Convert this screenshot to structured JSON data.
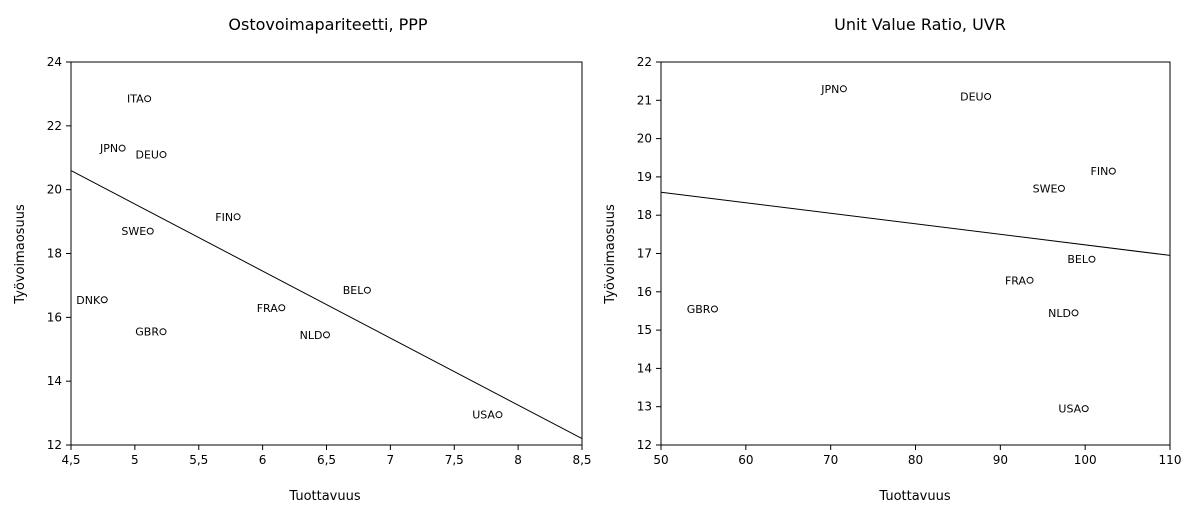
{
  "chart_data": [
    {
      "type": "scatter",
      "title": "Ostovoimapariteetti, PPP",
      "xlabel": "Tuottavuus",
      "ylabel": "Työvoimaosuus",
      "xlim": [
        4.5,
        8.5
      ],
      "ylim": [
        12,
        24
      ],
      "x_ticks": [
        4.5,
        5,
        5.5,
        6,
        6.5,
        7,
        7.5,
        8,
        8.5
      ],
      "x_tick_labels": [
        "4,5",
        "5",
        "5,5",
        "6",
        "6,5",
        "7",
        "7,5",
        "8",
        "8,5"
      ],
      "y_ticks": [
        12,
        14,
        16,
        18,
        20,
        22,
        24
      ],
      "y_tick_labels": [
        "12",
        "14",
        "16",
        "18",
        "20",
        "22",
        "24"
      ],
      "points": [
        {
          "label": "ITA",
          "x": 5.1,
          "y": 22.85
        },
        {
          "label": "JPN",
          "x": 4.9,
          "y": 21.3
        },
        {
          "label": "DEU",
          "x": 5.22,
          "y": 21.1
        },
        {
          "label": "FIN",
          "x": 5.8,
          "y": 19.15
        },
        {
          "label": "SWE",
          "x": 5.12,
          "y": 18.7
        },
        {
          "label": "DNK",
          "x": 4.76,
          "y": 16.55
        },
        {
          "label": "BEL",
          "x": 6.82,
          "y": 16.85
        },
        {
          "label": "FRA",
          "x": 6.15,
          "y": 16.3
        },
        {
          "label": "GBR",
          "x": 5.22,
          "y": 15.55
        },
        {
          "label": "NLD",
          "x": 6.5,
          "y": 15.45
        },
        {
          "label": "USA",
          "x": 7.85,
          "y": 12.95
        }
      ],
      "trend_line": {
        "x": [
          4.5,
          8.5
        ],
        "y": [
          20.6,
          12.2
        ]
      },
      "grid": false,
      "legend": "none"
    },
    {
      "type": "scatter",
      "title": "Unit Value Ratio, UVR",
      "xlabel": "Tuottavuus",
      "ylabel": "Työvoimaosuus",
      "xlim": [
        50,
        110
      ],
      "ylim": [
        12,
        22
      ],
      "x_ticks": [
        50,
        60,
        70,
        80,
        90,
        100,
        110
      ],
      "x_tick_labels": [
        "50",
        "60",
        "70",
        "80",
        "90",
        "100",
        "110"
      ],
      "y_ticks": [
        12,
        13,
        14,
        15,
        16,
        17,
        18,
        19,
        20,
        21,
        22
      ],
      "y_tick_labels": [
        "12",
        "13",
        "14",
        "15",
        "16",
        "17",
        "18",
        "19",
        "20",
        "21",
        "22"
      ],
      "points": [
        {
          "label": "JPN",
          "x": 71.5,
          "y": 21.3
        },
        {
          "label": "DEU",
          "x": 88.5,
          "y": 21.1
        },
        {
          "label": "FIN",
          "x": 103.2,
          "y": 19.15
        },
        {
          "label": "SWE",
          "x": 97.2,
          "y": 18.7
        },
        {
          "label": "BEL",
          "x": 100.8,
          "y": 16.85
        },
        {
          "label": "FRA",
          "x": 93.5,
          "y": 16.3
        },
        {
          "label": "GBR",
          "x": 56.3,
          "y": 15.55
        },
        {
          "label": "NLD",
          "x": 98.8,
          "y": 15.45
        },
        {
          "label": "USA",
          "x": 100.0,
          "y": 12.95
        }
      ],
      "trend_line": {
        "x": [
          50,
          110
        ],
        "y": [
          18.6,
          16.95
        ]
      },
      "grid": false,
      "legend": "none"
    }
  ]
}
